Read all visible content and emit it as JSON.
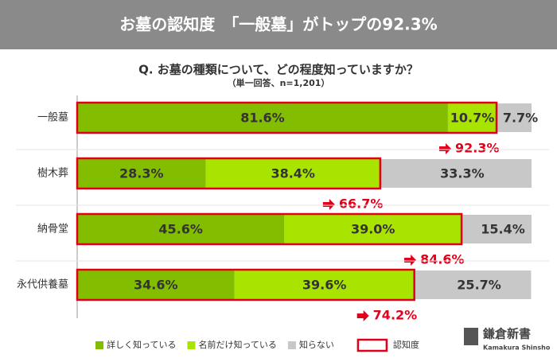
{
  "chart_data": {
    "type": "stacked-bar-horizontal",
    "title": "お墓の認知度　「一般墓」がトップの92.3%",
    "question": "Q. お墓の種類について、どの程度知っていますか？",
    "subtitle": "（単一回答、n=1,201）",
    "categories": [
      "一般墓",
      "樹木葬",
      "納骨堂",
      "永代供養墓"
    ],
    "series": [
      {
        "name": "詳しく知っている",
        "color": "#82bd00",
        "values": [
          81.6,
          28.3,
          45.6,
          34.6
        ],
        "value_labels": [
          "81.6%",
          "28.3%",
          "45.6%",
          "34.6%"
        ]
      },
      {
        "name": "名前だけ知っている",
        "color": "#a9e400",
        "values": [
          10.7,
          38.4,
          39.0,
          39.6
        ],
        "value_labels": [
          "10.7%",
          "38.4%",
          "39.0%",
          "39.6%"
        ]
      },
      {
        "name": "知らない",
        "color": "#c8c8c8",
        "values": [
          7.7,
          33.3,
          15.4,
          25.7
        ],
        "value_labels": [
          "7.7%",
          "33.3%",
          "15.4%",
          "25.7%"
        ]
      }
    ],
    "awareness": {
      "name": "認知度",
      "color": "#e0001b",
      "values": [
        92.3,
        66.7,
        84.6,
        74.2
      ],
      "value_labels": [
        "92.3%",
        "66.7%",
        "84.6%",
        "74.2%"
      ]
    },
    "xlim": [
      0,
      100
    ],
    "logo": {
      "name": "鎌倉新書",
      "sub": "Kamakura Shinsho"
    }
  }
}
